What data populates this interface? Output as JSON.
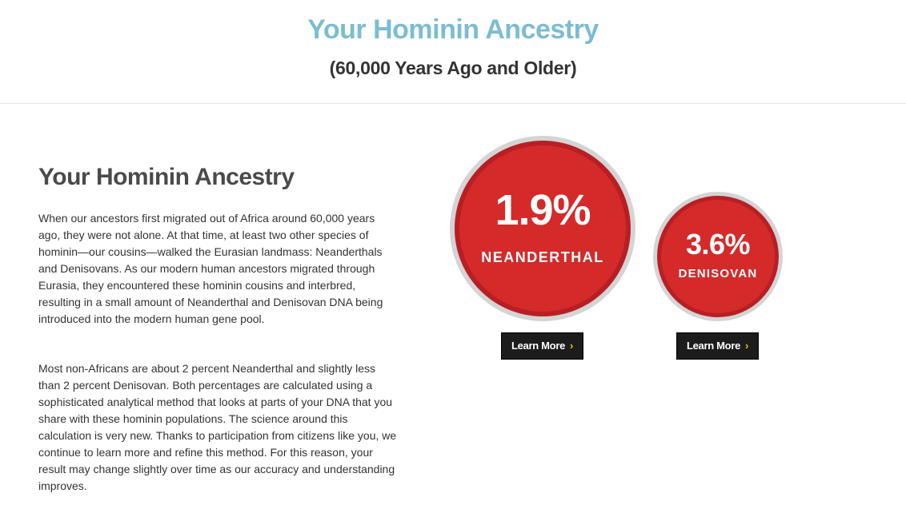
{
  "header": {
    "title": "Your Hominin Ancestry",
    "subtitle": "(60,000 Years Ago and Older)"
  },
  "main": {
    "title": "Your Hominin Ancestry",
    "paragraphs": [
      "When our ancestors first migrated out of Africa around 60,000 years ago, they were not alone. At that time, at least two other species of hominin—our cousins—walked the Eurasian landmass: Neanderthals and Denisovans. As our modern human ancestors migrated through Eurasia, they encountered these hominin cousins and interbred, resulting in a small amount of Neanderthal and Denisovan DNA being introduced into the modern human gene pool.",
      "Most non-Africans are about 2 percent Neanderthal and slightly less than 2 percent Denisovan. Both percentages are calculated using a sophisticated analytical method that looks at parts of your DNA that you share with these hominin populations. The science around this calculation is very new. Thanks to participation from citizens like you, we continue to learn more and refine this method. For this reason, your result may change slightly over time as our accuracy and understanding improves."
    ]
  },
  "results": [
    {
      "percent": "1.9%",
      "label": "NEANDERTHAL",
      "button": "Learn More",
      "button_icon": "chevron-right-icon"
    },
    {
      "percent": "3.6%",
      "label": "DENISOVAN",
      "button": "Learn More",
      "button_icon": "chevron-right-icon"
    }
  ],
  "colors": {
    "title_blue": "#7bbcd4",
    "circle_red": "#d42a2a",
    "circle_ring": "#b71f25",
    "button_dark": "#1c1c1c",
    "chevron_yellow": "#f2c300"
  }
}
